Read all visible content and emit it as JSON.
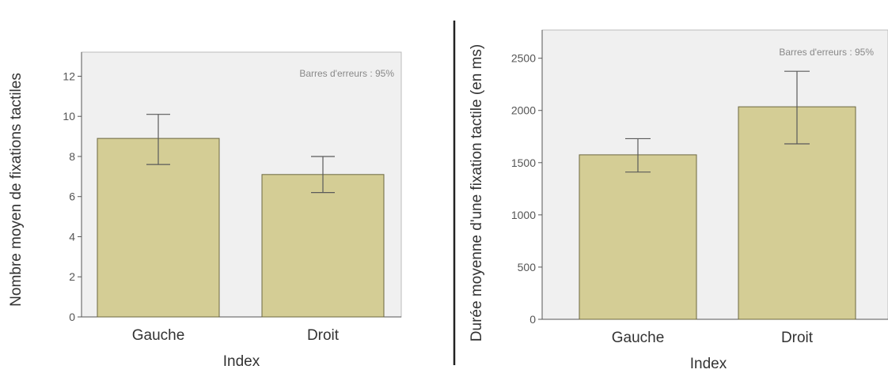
{
  "chart_data": [
    {
      "type": "bar",
      "categories": [
        "Gauche",
        "Droit"
      ],
      "values": [
        8.9,
        7.1
      ],
      "error_bars": {
        "lower": [
          7.6,
          6.2
        ],
        "upper": [
          10.1,
          8.0
        ]
      },
      "annotation": "Barres d'erreurs : 95%",
      "xlabel": "Index",
      "ylabel": "Nombre moyen de fixations tactiles",
      "yticks": [
        0,
        2,
        4,
        6,
        8,
        10,
        12
      ],
      "ylim": [
        0,
        13.2
      ],
      "grid": false,
      "colors": {
        "bar": "#d4cd95",
        "bar_edge": "#6b6740",
        "plot_bg": "#f0f0f0",
        "error_bar": "#5a5a5a"
      }
    },
    {
      "type": "bar",
      "categories": [
        "Gauche",
        "Droit"
      ],
      "values": [
        1575,
        2035
      ],
      "error_bars": {
        "lower": [
          1410,
          1680
        ],
        "upper": [
          1730,
          2375
        ]
      },
      "annotation": "Barres d'erreurs : 95%",
      "xlabel": "Index",
      "ylabel": "Durée moyenne d'une fixation tactile (en ms)",
      "yticks": [
        0,
        500,
        1000,
        1500,
        2000,
        2500
      ],
      "ylim": [
        0,
        2770
      ],
      "grid": false,
      "colors": {
        "bar": "#d4cd95",
        "bar_edge": "#6b6740",
        "plot_bg": "#f0f0f0",
        "error_bar": "#5a5a5a"
      }
    }
  ]
}
